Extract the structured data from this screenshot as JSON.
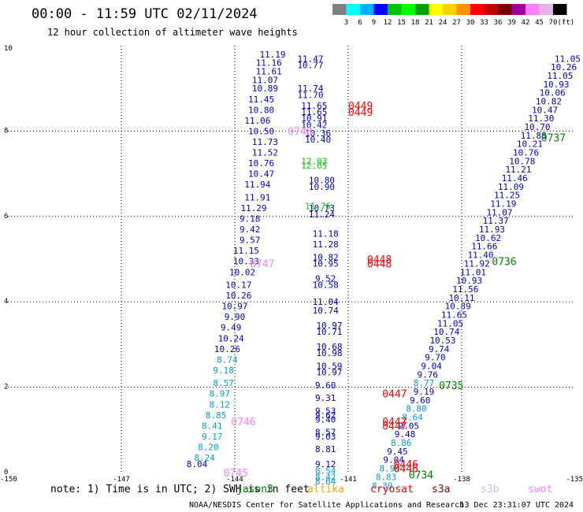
{
  "header": {
    "title": "00:00 - 11:59 UTC 02/11/2024",
    "subtitle": "12 hour collection of altimeter wave heights"
  },
  "colorbar": {
    "unit": "(ft)",
    "labels": [
      "3",
      "6",
      "9",
      "12",
      "15",
      "18",
      "21",
      "24",
      "27",
      "30",
      "33",
      "36",
      "39",
      "42",
      "45",
      "70"
    ],
    "colors": [
      "#808080",
      "#00ffff",
      "#00b0ff",
      "#0000ff",
      "#00c000",
      "#00ff00",
      "#00a000",
      "#ffff00",
      "#ffd000",
      "#ff9000",
      "#ff0000",
      "#c00000",
      "#800000",
      "#a000a0",
      "#ff80ff",
      "#e8b0e8",
      "#000000"
    ]
  },
  "footer": {
    "note": "note: 1) Time is in UTC; 2) SWH is in feet",
    "credit": "NOAA/NESDIS Center for Satellite Applications and Research",
    "timestamp": "13 Dec 23:31:07 UTC 2024",
    "satellites": [
      {
        "name": "jason3",
        "color": "#008000"
      },
      {
        "name": "altika",
        "color": "#ffa500"
      },
      {
        "name": "cryosat",
        "color": "#ff0000"
      },
      {
        "name": "s3a",
        "color": "#8b0000"
      },
      {
        "name": "s3b",
        "color": "#c0c0f0"
      },
      {
        "name": "swot",
        "color": "#ff80ff"
      }
    ]
  },
  "chart_data": {
    "type": "scatter",
    "title": "00:00 - 11:59 UTC 02/11/2024",
    "subtitle": "12 hour collection of altimeter wave heights",
    "xlim": [
      -150,
      -135
    ],
    "ylim": [
      0,
      10
    ],
    "x_ticks": [
      "-150",
      "-147",
      "-144",
      "-141",
      "-138",
      "-135"
    ],
    "y_ticks": [
      "0",
      "2",
      "4",
      "6",
      "8",
      "10"
    ],
    "grid": true,
    "tracks": [
      {
        "color": "#0000cd",
        "points": [
          {
            "x": -143.0,
            "y": 9.8,
            "v": "11.19"
          },
          {
            "x": -143.1,
            "y": 9.6,
            "v": "11.16"
          },
          {
            "x": -143.1,
            "y": 9.4,
            "v": "11.61"
          },
          {
            "x": -143.2,
            "y": 9.2,
            "v": "11.07"
          },
          {
            "x": -143.2,
            "y": 9.0,
            "v": "10.89"
          },
          {
            "x": -143.3,
            "y": 8.75,
            "v": "11.45"
          },
          {
            "x": -143.3,
            "y": 8.5,
            "v": "10.80"
          },
          {
            "x": -143.4,
            "y": 8.25,
            "v": "11.06"
          },
          {
            "x": -143.3,
            "y": 8.0,
            "v": "10.50"
          },
          {
            "x": -143.2,
            "y": 7.75,
            "v": "11.73"
          },
          {
            "x": -143.2,
            "y": 7.5,
            "v": "11.52"
          },
          {
            "x": -143.3,
            "y": 7.25,
            "v": "10.76"
          },
          {
            "x": -143.3,
            "y": 7.0,
            "v": "10.47"
          },
          {
            "x": -143.4,
            "y": 6.75,
            "v": "11.94"
          },
          {
            "x": -143.4,
            "y": 6.45,
            "v": "11.91"
          },
          {
            "x": -143.5,
            "y": 6.2,
            "v": "11.29"
          },
          {
            "x": -143.6,
            "y": 5.95,
            "v": "9.18"
          },
          {
            "x": -143.6,
            "y": 5.7,
            "v": "9.42"
          },
          {
            "x": -143.6,
            "y": 5.45,
            "v": "9.57"
          },
          {
            "x": -143.7,
            "y": 5.2,
            "v": "11.15"
          },
          {
            "x": -143.7,
            "y": 4.95,
            "v": "10.33"
          },
          {
            "x": -143.8,
            "y": 4.7,
            "v": "10.02"
          },
          {
            "x": -143.9,
            "y": 4.4,
            "v": "10.17"
          },
          {
            "x": -143.9,
            "y": 4.15,
            "v": "10.26"
          },
          {
            "x": -144.0,
            "y": 3.9,
            "v": "10.97"
          },
          {
            "x": -144.0,
            "y": 3.65,
            "v": "9.90"
          },
          {
            "x": -144.1,
            "y": 3.4,
            "v": "9.49"
          },
          {
            "x": -144.1,
            "y": 3.15,
            "v": "10.24"
          },
          {
            "x": -144.2,
            "y": 2.9,
            "v": "10.26"
          },
          {
            "x": -145.0,
            "y": 0.2,
            "v": "8.04"
          }
        ]
      },
      {
        "color": "#00a0d0",
        "points": [
          {
            "x": -144.2,
            "y": 2.65,
            "v": "8.74"
          },
          {
            "x": -144.3,
            "y": 2.4,
            "v": "9.18"
          },
          {
            "x": -144.3,
            "y": 2.1,
            "v": "8.57"
          },
          {
            "x": -144.4,
            "y": 1.85,
            "v": "8.97"
          },
          {
            "x": -144.4,
            "y": 1.6,
            "v": "8.12"
          },
          {
            "x": -144.5,
            "y": 1.35,
            "v": "8.85"
          },
          {
            "x": -144.6,
            "y": 1.1,
            "v": "8.41"
          },
          {
            "x": -144.6,
            "y": 0.85,
            "v": "9.17"
          },
          {
            "x": -144.7,
            "y": 0.6,
            "v": "8.20"
          },
          {
            "x": -144.8,
            "y": 0.35,
            "v": "8.24"
          }
        ]
      },
      {
        "color": "#0000cd",
        "points": [
          {
            "x": -142.0,
            "y": 9.7,
            "v": "11.47"
          },
          {
            "x": -142.0,
            "y": 9.55,
            "v": "10.77"
          },
          {
            "x": -142.0,
            "y": 9.0,
            "v": "11.74"
          },
          {
            "x": -142.0,
            "y": 8.85,
            "v": "11.70"
          },
          {
            "x": -141.9,
            "y": 8.6,
            "v": "11.65"
          },
          {
            "x": -141.9,
            "y": 8.45,
            "v": "11.65"
          },
          {
            "x": -141.9,
            "y": 8.3,
            "v": "10.91"
          },
          {
            "x": -141.9,
            "y": 8.15,
            "v": "10.42"
          },
          {
            "x": -141.8,
            "y": 7.95,
            "v": "10.36"
          },
          {
            "x": -141.8,
            "y": 7.8,
            "v": "10.40"
          },
          {
            "x": -141.7,
            "y": 6.85,
            "v": "10.80"
          },
          {
            "x": -141.7,
            "y": 6.7,
            "v": "10.90"
          },
          {
            "x": -141.7,
            "y": 6.2,
            "v": "10.73"
          },
          {
            "x": -141.7,
            "y": 6.05,
            "v": "11.24"
          },
          {
            "x": -141.6,
            "y": 5.6,
            "v": "11.18"
          },
          {
            "x": -141.6,
            "y": 5.35,
            "v": "11.28"
          },
          {
            "x": -141.6,
            "y": 5.05,
            "v": "10.82"
          },
          {
            "x": -141.6,
            "y": 4.9,
            "v": "10.95"
          },
          {
            "x": -141.6,
            "y": 4.55,
            "v": "9.52"
          },
          {
            "x": -141.6,
            "y": 4.4,
            "v": "10.58"
          },
          {
            "x": -141.6,
            "y": 4.0,
            "v": "11.04"
          },
          {
            "x": -141.6,
            "y": 3.8,
            "v": "10.74"
          },
          {
            "x": -141.5,
            "y": 3.45,
            "v": "10.97"
          },
          {
            "x": -141.5,
            "y": 3.3,
            "v": "10.71"
          },
          {
            "x": -141.5,
            "y": 2.95,
            "v": "10.68"
          },
          {
            "x": -141.5,
            "y": 2.8,
            "v": "10.98"
          },
          {
            "x": -141.5,
            "y": 2.5,
            "v": "10.59"
          },
          {
            "x": -141.5,
            "y": 2.35,
            "v": "10.97"
          },
          {
            "x": -141.6,
            "y": 2.05,
            "v": "9.60"
          },
          {
            "x": -141.6,
            "y": 1.75,
            "v": "9.31"
          },
          {
            "x": -141.6,
            "y": 1.45,
            "v": "9.53"
          },
          {
            "x": -141.6,
            "y": 1.35,
            "v": "9.62"
          },
          {
            "x": -141.6,
            "y": 1.25,
            "v": "9.40"
          },
          {
            "x": -141.6,
            "y": 0.95,
            "v": "8.57"
          },
          {
            "x": -141.6,
            "y": 0.85,
            "v": "9.03"
          },
          {
            "x": -141.6,
            "y": 0.55,
            "v": "8.81"
          },
          {
            "x": -141.6,
            "y": 0.2,
            "v": "9.12"
          }
        ]
      },
      {
        "color": "#00a0d0",
        "points": [
          {
            "x": -141.6,
            "y": 0.05,
            "v": "8.54"
          },
          {
            "x": -141.6,
            "y": -0.1,
            "v": "8.42"
          },
          {
            "x": -141.6,
            "y": -0.2,
            "v": "8.64"
          }
        ]
      },
      {
        "color": "#00cc00",
        "points": [
          {
            "x": -141.9,
            "y": 7.3,
            "v": "12.03"
          },
          {
            "x": -141.9,
            "y": 7.2,
            "v": "12.05"
          },
          {
            "x": -141.8,
            "y": 6.25,
            "v": "11.76"
          }
        ]
      },
      {
        "color": "#0000cd",
        "points": [
          {
            "x": -135.2,
            "y": 9.7,
            "v": "11.05"
          },
          {
            "x": -135.3,
            "y": 9.5,
            "v": "10.26"
          },
          {
            "x": -135.4,
            "y": 9.3,
            "v": "11.05"
          },
          {
            "x": -135.5,
            "y": 9.1,
            "v": "10.93"
          },
          {
            "x": -135.6,
            "y": 8.9,
            "v": "10.06"
          },
          {
            "x": -135.7,
            "y": 8.7,
            "v": "10.82"
          },
          {
            "x": -135.8,
            "y": 8.5,
            "v": "10.47"
          },
          {
            "x": -135.9,
            "y": 8.3,
            "v": "11.30"
          },
          {
            "x": -136.0,
            "y": 8.1,
            "v": "10.70"
          },
          {
            "x": -136.1,
            "y": 7.9,
            "v": "11.88"
          },
          {
            "x": -136.2,
            "y": 7.7,
            "v": "10.21"
          },
          {
            "x": -136.3,
            "y": 7.5,
            "v": "10.76"
          },
          {
            "x": -136.4,
            "y": 7.3,
            "v": "10.78"
          },
          {
            "x": -136.5,
            "y": 7.1,
            "v": "11.21"
          },
          {
            "x": -136.6,
            "y": 6.9,
            "v": "11.46"
          },
          {
            "x": -136.7,
            "y": 6.7,
            "v": "11.09"
          },
          {
            "x": -136.8,
            "y": 6.5,
            "v": "11.25"
          },
          {
            "x": -136.9,
            "y": 6.3,
            "v": "11.19"
          },
          {
            "x": -137.0,
            "y": 6.1,
            "v": "11.07"
          },
          {
            "x": -137.1,
            "y": 5.9,
            "v": "11.37"
          },
          {
            "x": -137.2,
            "y": 5.7,
            "v": "11.93"
          },
          {
            "x": -137.3,
            "y": 5.5,
            "v": "10.62"
          },
          {
            "x": -137.4,
            "y": 5.3,
            "v": "11.66"
          },
          {
            "x": -137.5,
            "y": 5.1,
            "v": "11.40"
          },
          {
            "x": -137.6,
            "y": 4.9,
            "v": "11.92"
          },
          {
            "x": -137.7,
            "y": 4.7,
            "v": "11.01"
          },
          {
            "x": -137.8,
            "y": 4.5,
            "v": "10.93"
          },
          {
            "x": -137.9,
            "y": 4.3,
            "v": "11.56"
          },
          {
            "x": -138.0,
            "y": 4.1,
            "v": "10.11"
          },
          {
            "x": -138.1,
            "y": 3.9,
            "v": "10.89"
          },
          {
            "x": -138.2,
            "y": 3.7,
            "v": "11.65"
          },
          {
            "x": -138.3,
            "y": 3.5,
            "v": "11.05"
          },
          {
            "x": -138.4,
            "y": 3.3,
            "v": "10.74"
          },
          {
            "x": -138.5,
            "y": 3.1,
            "v": "10.53"
          },
          {
            "x": -138.6,
            "y": 2.9,
            "v": "9.74"
          },
          {
            "x": -138.7,
            "y": 2.7,
            "v": "9.70"
          },
          {
            "x": -138.8,
            "y": 2.5,
            "v": "9.04"
          },
          {
            "x": -138.9,
            "y": 2.3,
            "v": "9.76"
          },
          {
            "x": -139.0,
            "y": 1.9,
            "v": "9.19"
          },
          {
            "x": -139.1,
            "y": 1.7,
            "v": "9.60"
          },
          {
            "x": -139.4,
            "y": 1.1,
            "v": "9.05"
          },
          {
            "x": -139.5,
            "y": 0.9,
            "v": "9.48"
          },
          {
            "x": -139.7,
            "y": 0.5,
            "v": "9.45"
          },
          {
            "x": -139.8,
            "y": 0.3,
            "v": "9.04"
          }
        ]
      },
      {
        "color": "#00a0d0",
        "points": [
          {
            "x": -139.0,
            "y": 2.1,
            "v": "8.77"
          },
          {
            "x": -139.2,
            "y": 1.5,
            "v": "8.80"
          },
          {
            "x": -139.3,
            "y": 1.3,
            "v": "8.64"
          },
          {
            "x": -139.6,
            "y": 0.7,
            "v": "8.86"
          },
          {
            "x": -139.9,
            "y": 0.1,
            "v": "8.94"
          },
          {
            "x": -140.0,
            "y": -0.1,
            "v": "8.83"
          },
          {
            "x": -140.1,
            "y": -0.3,
            "v": "8.39"
          }
        ]
      }
    ],
    "time_labels": [
      {
        "x": -141.0,
        "y": 8.6,
        "v": "0449",
        "color": "#ff0000"
      },
      {
        "x": -141.0,
        "y": 8.45,
        "v": "0449",
        "color": "#ff0000"
      },
      {
        "x": -140.5,
        "y": 5.0,
        "v": "0448",
        "color": "#ff0000"
      },
      {
        "x": -140.5,
        "y": 4.9,
        "v": "0448",
        "color": "#ff0000"
      },
      {
        "x": -140.1,
        "y": 1.85,
        "v": "0447",
        "color": "#ff0000"
      },
      {
        "x": -140.1,
        "y": 1.2,
        "v": "0447",
        "color": "#ff0000"
      },
      {
        "x": -140.1,
        "y": 1.1,
        "v": "0447",
        "color": "#ff0000"
      },
      {
        "x": -139.8,
        "y": 0.2,
        "v": "0446",
        "color": "#ff0000"
      },
      {
        "x": -139.8,
        "y": 0.1,
        "v": "0446",
        "color": "#ff0000"
      },
      {
        "x": -142.6,
        "y": 8.0,
        "v": "0748",
        "color": "#ff80ff"
      },
      {
        "x": -143.6,
        "y": 4.9,
        "v": "0747",
        "color": "#ff80ff"
      },
      {
        "x": -144.1,
        "y": 1.2,
        "v": "0746",
        "color": "#ff80ff"
      },
      {
        "x": -144.3,
        "y": 0.0,
        "v": "0745",
        "color": "#ff80ff"
      },
      {
        "x": -135.9,
        "y": 7.85,
        "v": "0737",
        "color": "#008000"
      },
      {
        "x": -137.2,
        "y": 4.95,
        "v": "0736",
        "color": "#008000"
      },
      {
        "x": -138.6,
        "y": 2.05,
        "v": "0735",
        "color": "#008000"
      },
      {
        "x": -139.4,
        "y": -0.05,
        "v": "0734",
        "color": "#008000"
      }
    ]
  }
}
